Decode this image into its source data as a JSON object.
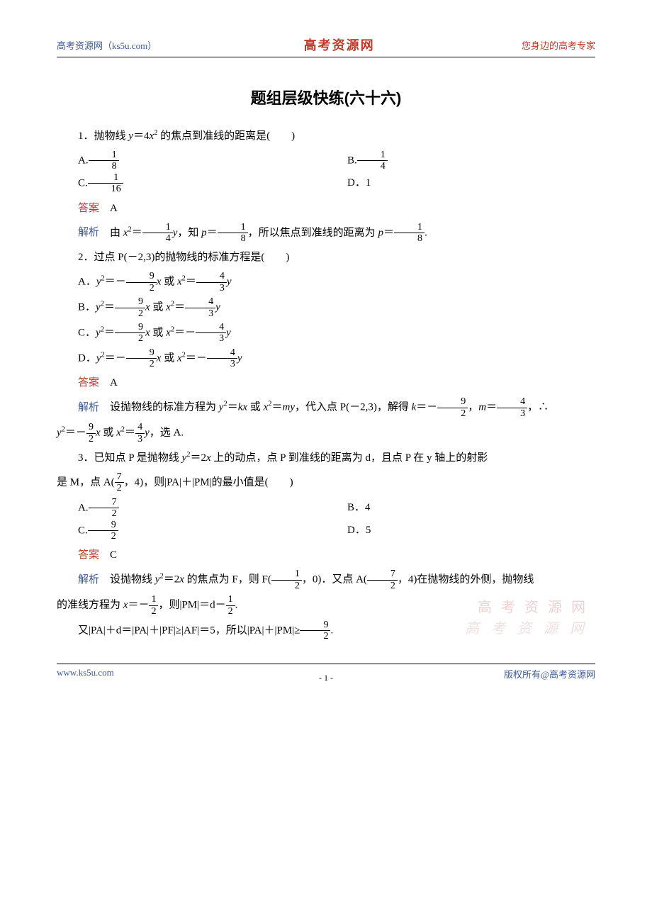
{
  "header": {
    "left": "高考资源网（ks5u.com）",
    "center": "高考资源网",
    "right": "您身边的高考专家"
  },
  "title": "题组层级快练(六十六)",
  "q1": {
    "stem_a": "1．抛物线 ",
    "stem_b": " 的焦点到准线的距离是(　　)",
    "optA_pre": "A.",
    "optA_num": "1",
    "optA_den": "8",
    "optB_pre": "B.",
    "optB_num": "1",
    "optB_den": "4",
    "optC_pre": "C.",
    "optC_num": "1",
    "optC_den": "16",
    "optD": "D．1",
    "ans_label": "答案",
    "ans": "A",
    "exp_label": "解析",
    "exp_a": "由 ",
    "exp_b": "，知 ",
    "exp_c": "，所以焦点到准线的距离为 ",
    "exp_d": "."
  },
  "q2": {
    "stem": "2．过点 P(－2,3)的抛物线的标准方程是(　　)",
    "optA": "A．",
    "optB": "B．",
    "optC": "C．",
    "optD": "D．",
    "ans_label": "答案",
    "ans": "A",
    "exp_label": "解析",
    "exp1": "设抛物线的标准方程为 ",
    "exp2": " 或 ",
    "exp3": "，代入点 P(－2,3)，解得 ",
    "exp4": "，",
    "exp5": "，∴",
    "exp6": " 或 ",
    "exp7": "，选 A."
  },
  "q3": {
    "stem_a": "3．已知点 P 是抛物线 ",
    "stem_b": " 上的动点，点 P 到准线的距离为 d，且点 P 在 y 轴上的射影",
    "stem_c": "是 M，点 A(",
    "stem_d": "，4)，则|PA|＋|PM|的最小值是(　　)",
    "optA_pre": "A.",
    "optA_num": "7",
    "optA_den": "2",
    "optB": "B．4",
    "optC_pre": "C.",
    "optC_num": "9",
    "optC_den": "2",
    "optD": "D．5",
    "ans_label": "答案",
    "ans": "C",
    "exp_label": "解析",
    "exp_a": "设抛物线 ",
    "exp_b": "的焦点为 F，则 F(",
    "exp_c": "，0)．又点 A(",
    "exp_d": "，4)在抛物线的外侧，抛物线",
    "exp_e": "的准线方程为 ",
    "exp_f": "，则|PM|＝d－",
    "exp_g": ".",
    "exp_h": "又|PA|＋d＝|PA|＋|PF|≥|AF|＝5，所以|PA|＋|PM|≥",
    "exp_i": "."
  },
  "watermark": "高 考 资 源 网",
  "footer": {
    "left": "www.ks5u.com",
    "center": "- 1 -",
    "right": "版权所有@高考资源网"
  }
}
